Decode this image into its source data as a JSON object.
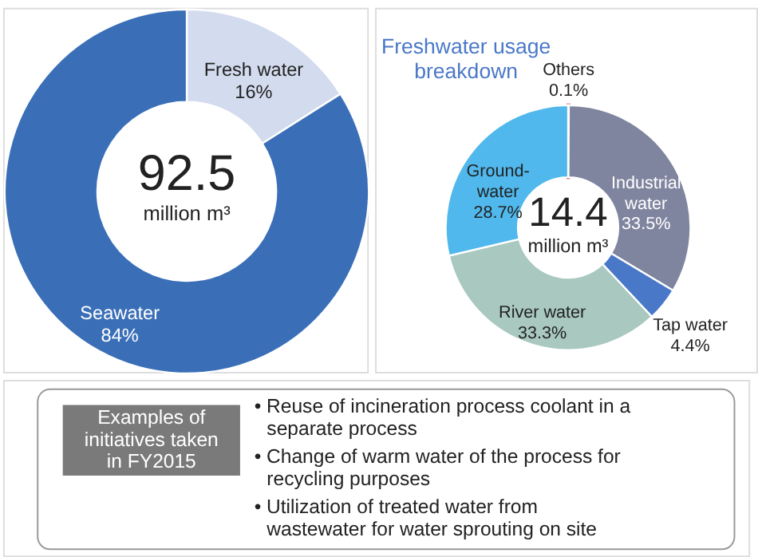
{
  "chart_data": [
    {
      "type": "donut",
      "categories": [
        "Fresh water",
        "Seawater"
      ],
      "values": [
        16,
        84
      ],
      "value_labels": [
        "16%",
        "84%"
      ],
      "colors": [
        "#d3dcee",
        "#3a6fb8"
      ],
      "annotations": [
        "92.5",
        "million m³"
      ]
    },
    {
      "type": "donut",
      "title": "Freshwater usage breakdown",
      "categories": [
        "Others",
        "Industrial water",
        "Tap water",
        "River water",
        "Ground-water"
      ],
      "values": [
        0.1,
        33.5,
        4.4,
        33.3,
        28.7
      ],
      "value_labels": [
        "0.1%",
        "33.5%",
        "4.4%",
        "33.3%",
        "28.7%"
      ],
      "colors": [
        "#c23b5a",
        "#80859f",
        "#4a78c8",
        "#a8c8c0",
        "#50b8ec"
      ],
      "annotations": [
        "14.4",
        "million m³"
      ]
    },
    {
      "type": "other",
      "title": "Examples of initiatives taken in FY2015",
      "annotations": [
        "• Reuse of incineration process coolant in a separate process",
        "• Change of warm water of the process for recycling purposes",
        "• Utilization of treated water from wastewater for water sprouting on site"
      ]
    }
  ]
}
